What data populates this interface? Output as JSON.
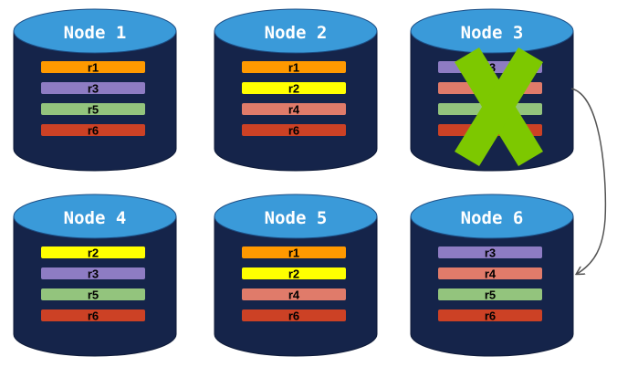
{
  "colors": {
    "cylinder_top": "#3A9AD9",
    "cylinder_body": "#15244A",
    "r1": "#FF9900",
    "r2": "#FFFF00",
    "r3": "#8E7CC3",
    "r4": "#E07B6A",
    "r5": "#93C47D",
    "r6": "#CC4125",
    "failure_x": "#7DC800",
    "arrow": "#555555"
  },
  "nodes": [
    {
      "title": "Node 1",
      "replicas": [
        "r1",
        "r3",
        "r5",
        "r6"
      ],
      "failed": false
    },
    {
      "title": "Node 2",
      "replicas": [
        "r1",
        "r2",
        "r4",
        "r6"
      ],
      "failed": false
    },
    {
      "title": "Node 3",
      "replicas": [
        "r3",
        "r4",
        "r5",
        "r6"
      ],
      "failed": true
    },
    {
      "title": "Node 4",
      "replicas": [
        "r2",
        "r3",
        "r5",
        "r6"
      ],
      "failed": false
    },
    {
      "title": "Node 5",
      "replicas": [
        "r1",
        "r2",
        "r4",
        "r6"
      ],
      "failed": false
    },
    {
      "title": "Node 6",
      "replicas": [
        "r3",
        "r4",
        "r5",
        "r6"
      ],
      "failed": false
    }
  ],
  "edges": [
    {
      "from": "Node 3",
      "to": "Node 6",
      "style": "curved-arrow"
    }
  ]
}
